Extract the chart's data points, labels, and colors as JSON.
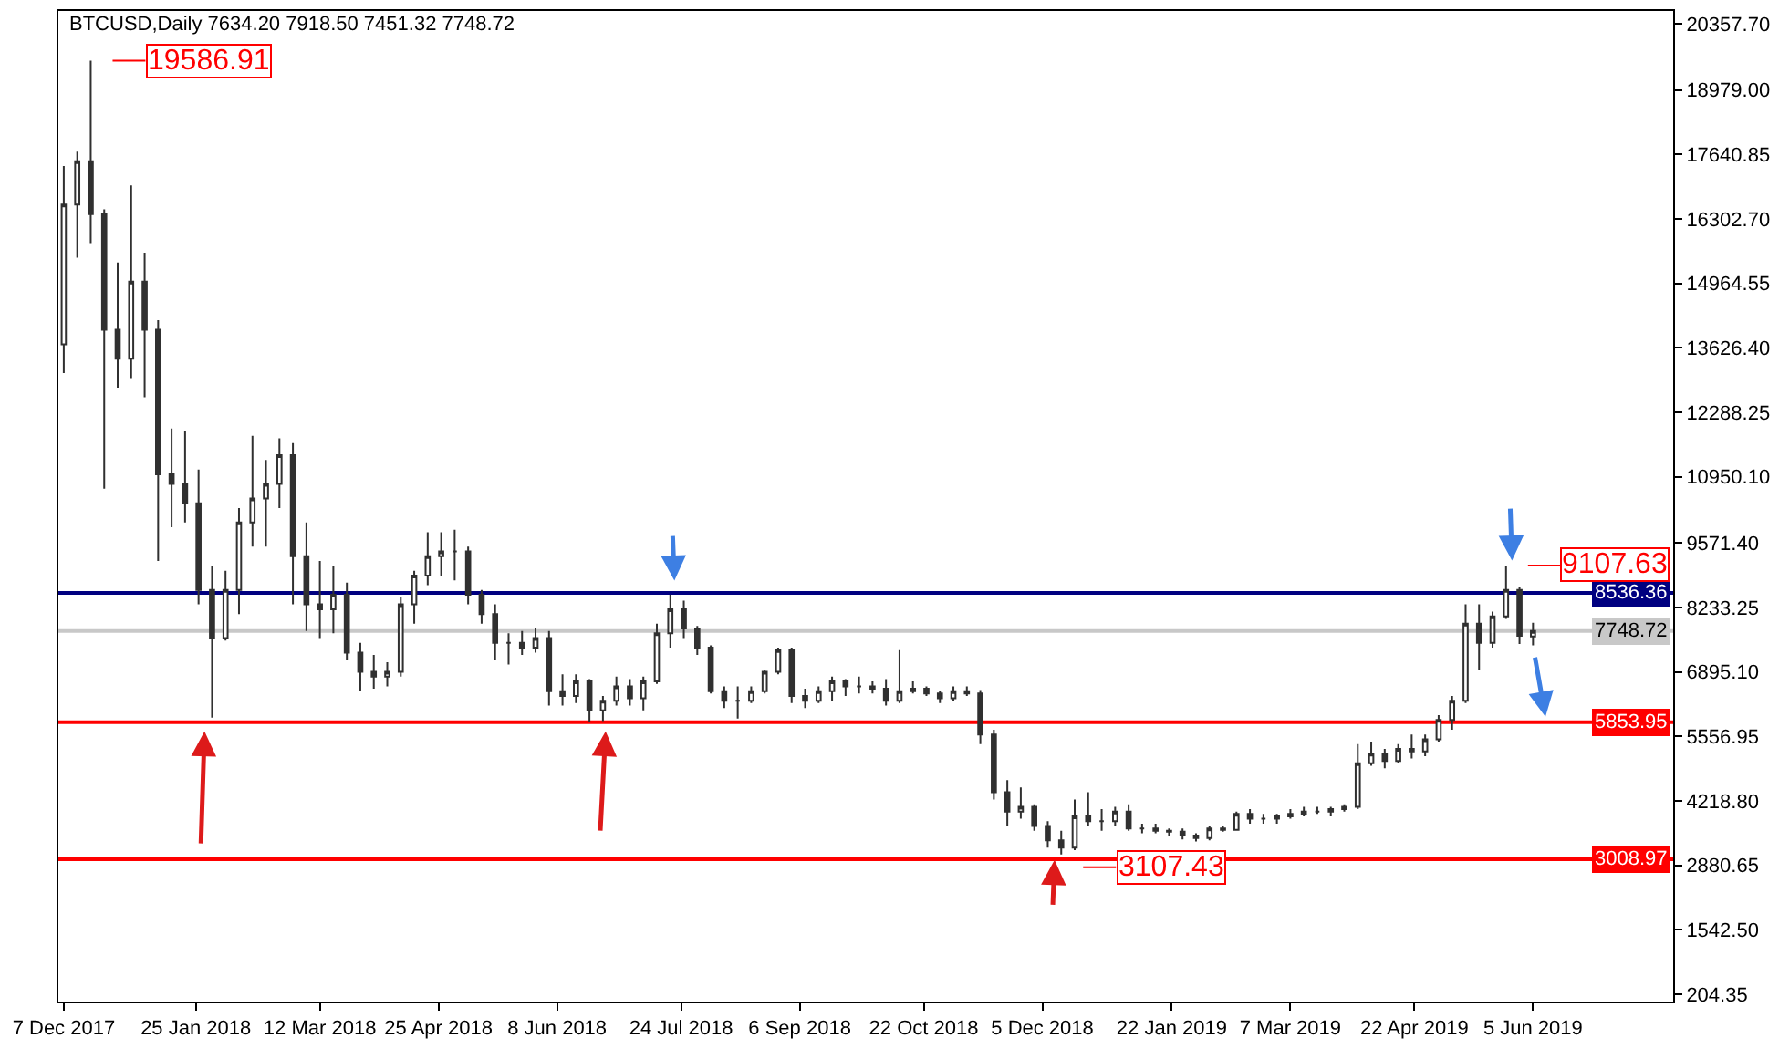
{
  "chart_data": {
    "type": "candlestick",
    "title": "BTCUSD,Daily 7634.20 7918.50 7451.32 7748.72",
    "color": "#303030",
    "x": [
      "2017-12-07",
      "2017-12-12",
      "2017-12-17",
      "2017-12-22",
      "2017-12-27",
      "2018-01-01",
      "2018-01-06",
      "2018-01-11",
      "2018-01-16",
      "2018-01-21",
      "2018-01-26",
      "2018-01-31",
      "2018-02-05",
      "2018-02-10",
      "2018-02-15",
      "2018-02-20",
      "2018-02-25",
      "2018-03-02",
      "2018-03-07",
      "2018-03-12",
      "2018-03-17",
      "2018-03-22",
      "2018-03-27",
      "2018-04-01",
      "2018-04-06",
      "2018-04-11",
      "2018-04-16",
      "2018-04-21",
      "2018-04-26",
      "2018-05-01",
      "2018-05-06",
      "2018-05-11",
      "2018-05-16",
      "2018-05-21",
      "2018-05-26",
      "2018-05-31",
      "2018-06-05",
      "2018-06-10",
      "2018-06-15",
      "2018-06-20",
      "2018-06-25",
      "2018-06-30",
      "2018-07-05",
      "2018-07-10",
      "2018-07-15",
      "2018-07-20",
      "2018-07-25",
      "2018-07-30",
      "2018-08-04",
      "2018-08-09",
      "2018-08-14",
      "2018-08-19",
      "2018-08-24",
      "2018-08-29",
      "2018-09-03",
      "2018-09-08",
      "2018-09-13",
      "2018-09-18",
      "2018-09-23",
      "2018-09-28",
      "2018-10-03",
      "2018-10-08",
      "2018-10-13",
      "2018-10-18",
      "2018-10-23",
      "2018-10-28",
      "2018-11-02",
      "2018-11-07",
      "2018-11-12",
      "2018-11-17",
      "2018-11-22",
      "2018-11-27",
      "2018-12-02",
      "2018-12-07",
      "2018-12-12",
      "2018-12-17",
      "2018-12-22",
      "2018-12-27",
      "2019-01-01",
      "2019-01-06",
      "2019-01-11",
      "2019-01-16",
      "2019-01-21",
      "2019-01-26",
      "2019-01-31",
      "2019-02-05",
      "2019-02-10",
      "2019-02-15",
      "2019-02-20",
      "2019-02-25",
      "2019-03-02",
      "2019-03-07",
      "2019-03-12",
      "2019-03-17",
      "2019-03-22",
      "2019-03-27",
      "2019-04-01",
      "2019-04-06",
      "2019-04-11",
      "2019-04-16",
      "2019-04-21",
      "2019-04-26",
      "2019-05-01",
      "2019-05-06",
      "2019-05-11",
      "2019-05-16",
      "2019-05-21",
      "2019-05-26",
      "2019-05-31",
      "2019-06-05"
    ],
    "ohlc": [
      [
        13700,
        17400,
        13100,
        16600
      ],
      [
        16600,
        17700,
        15500,
        17500
      ],
      [
        17500,
        19586.91,
        15800,
        16400
      ],
      [
        16400,
        16500,
        10700,
        14000
      ],
      [
        14000,
        15400,
        12800,
        13400
      ],
      [
        13400,
        17000,
        13000,
        15000
      ],
      [
        15000,
        15600,
        12600,
        14000
      ],
      [
        14000,
        14200,
        9200,
        11000
      ],
      [
        11000,
        11950,
        9900,
        10800
      ],
      [
        10800,
        11900,
        10000,
        10400
      ],
      [
        10400,
        11100,
        8300,
        8600
      ],
      [
        8600,
        9100,
        5950,
        7600
      ],
      [
        7600,
        9000,
        7550,
        8600
      ],
      [
        8600,
        10300,
        8100,
        10000
      ],
      [
        10000,
        11800,
        9500,
        10500
      ],
      [
        10500,
        11300,
        9500,
        10800
      ],
      [
        10800,
        11750,
        10300,
        11400
      ],
      [
        11400,
        11650,
        8300,
        9300
      ],
      [
        9300,
        10000,
        7750,
        8300
      ],
      [
        8300,
        9200,
        7600,
        8200
      ],
      [
        8200,
        9100,
        7700,
        8500
      ],
      [
        8500,
        8750,
        7150,
        7300
      ],
      [
        7300,
        7500,
        6500,
        6900
      ],
      [
        6900,
        7250,
        6550,
        6800
      ],
      [
        6800,
        7100,
        6600,
        6900
      ],
      [
        6900,
        8450,
        6800,
        8300
      ],
      [
        8300,
        9000,
        7900,
        8900
      ],
      [
        8900,
        9800,
        8700,
        9300
      ],
      [
        9300,
        9800,
        8900,
        9400
      ],
      [
        9400,
        9850,
        8800,
        9400
      ],
      [
        9400,
        9500,
        8300,
        8500
      ],
      [
        8500,
        8600,
        7900,
        8100
      ],
      [
        8100,
        8300,
        7150,
        7500
      ],
      [
        7500,
        7700,
        7050,
        7500
      ],
      [
        7500,
        7750,
        7250,
        7400
      ],
      [
        7400,
        7800,
        7300,
        7600
      ],
      [
        7600,
        7750,
        6200,
        6500
      ],
      [
        6500,
        6850,
        6200,
        6400
      ],
      [
        6400,
        6850,
        6250,
        6700
      ],
      [
        6700,
        6750,
        5870,
        6100
      ],
      [
        6100,
        6400,
        5880,
        6300
      ],
      [
        6300,
        6800,
        6200,
        6600
      ],
      [
        6600,
        6750,
        6200,
        6350
      ],
      [
        6350,
        6800,
        6100,
        6700
      ],
      [
        6700,
        7900,
        6650,
        7700
      ],
      [
        7700,
        8500,
        7400,
        8200
      ],
      [
        8200,
        8380,
        7600,
        7800
      ],
      [
        7800,
        7850,
        7250,
        7400
      ],
      [
        7400,
        7450,
        6450,
        6500
      ],
      [
        6500,
        6600,
        6150,
        6300
      ],
      [
        6300,
        6600,
        5930,
        6300
      ],
      [
        6300,
        6600,
        6250,
        6500
      ],
      [
        6500,
        6950,
        6450,
        6900
      ],
      [
        6900,
        7400,
        6850,
        7350
      ],
      [
        7350,
        7400,
        6250,
        6400
      ],
      [
        6400,
        6550,
        6150,
        6300
      ],
      [
        6300,
        6600,
        6250,
        6500
      ],
      [
        6500,
        6800,
        6300,
        6700
      ],
      [
        6700,
        6750,
        6400,
        6600
      ],
      [
        6600,
        6800,
        6450,
        6600
      ],
      [
        6600,
        6700,
        6450,
        6550
      ],
      [
        6550,
        6750,
        6200,
        6300
      ],
      [
        6300,
        7350,
        6250,
        6500
      ],
      [
        6500,
        6700,
        6450,
        6550
      ],
      [
        6550,
        6600,
        6400,
        6450
      ],
      [
        6450,
        6500,
        6250,
        6350
      ],
      [
        6350,
        6600,
        6300,
        6500
      ],
      [
        6500,
        6600,
        6400,
        6450
      ],
      [
        6450,
        6520,
        5400,
        5600
      ],
      [
        5600,
        5700,
        4250,
        4400
      ],
      [
        4400,
        4650,
        3700,
        4000
      ],
      [
        4000,
        4500,
        3850,
        4100
      ],
      [
        4100,
        4150,
        3600,
        3700
      ],
      [
        3700,
        3800,
        3250,
        3400
      ],
      [
        3400,
        3600,
        3107.43,
        3250
      ],
      [
        3250,
        4250,
        3200,
        3900
      ],
      [
        3900,
        4400,
        3700,
        3800
      ],
      [
        3800,
        4050,
        3600,
        3800
      ],
      [
        3800,
        4100,
        3700,
        4000
      ],
      [
        4000,
        4150,
        3600,
        3650
      ],
      [
        3650,
        3750,
        3550,
        3650
      ],
      [
        3650,
        3750,
        3550,
        3600
      ],
      [
        3600,
        3650,
        3500,
        3580
      ],
      [
        3580,
        3650,
        3420,
        3500
      ],
      [
        3500,
        3550,
        3380,
        3450
      ],
      [
        3450,
        3700,
        3400,
        3650
      ],
      [
        3650,
        3700,
        3580,
        3620
      ],
      [
        3620,
        4000,
        3600,
        3950
      ],
      [
        3950,
        4050,
        3750,
        3850
      ],
      [
        3850,
        3950,
        3750,
        3850
      ],
      [
        3850,
        3950,
        3750,
        3900
      ],
      [
        3900,
        4050,
        3850,
        3950
      ],
      [
        3950,
        4100,
        3900,
        4000
      ],
      [
        4000,
        4100,
        3950,
        4000
      ],
      [
        4000,
        4100,
        3900,
        4050
      ],
      [
        4050,
        4150,
        4000,
        4100
      ],
      [
        4100,
        5400,
        4050,
        5000
      ],
      [
        5000,
        5450,
        4950,
        5200
      ],
      [
        5200,
        5300,
        4900,
        5050
      ],
      [
        5050,
        5400,
        5000,
        5300
      ],
      [
        5300,
        5600,
        5100,
        5250
      ],
      [
        5250,
        5600,
        5150,
        5500
      ],
      [
        5500,
        6000,
        5450,
        5900
      ],
      [
        5900,
        6400,
        5700,
        6300
      ],
      [
        6300,
        8300,
        6250,
        7900
      ],
      [
        7900,
        8300,
        6950,
        7500
      ],
      [
        7500,
        8150,
        7400,
        8050
      ],
      [
        8050,
        9107.63,
        8000,
        8600
      ],
      [
        8600,
        8650,
        7480,
        7650
      ],
      [
        7634.2,
        7918.5,
        7451.32,
        7748.72
      ]
    ],
    "xlim": [
      "2017-12-05",
      "2019-07-27"
    ],
    "xticks": [
      {
        "value": "2017-12-07",
        "label": "7 Dec 2017"
      },
      {
        "value": "2018-01-25",
        "label": "25 Jan 2018"
      },
      {
        "value": "2018-03-12",
        "label": "12 Mar 2018"
      },
      {
        "value": "2018-04-25",
        "label": "25 Apr 2018"
      },
      {
        "value": "2018-06-08",
        "label": "8 Jun 2018"
      },
      {
        "value": "2018-07-24",
        "label": "24 Jul 2018"
      },
      {
        "value": "2018-09-06",
        "label": "6 Sep 2018"
      },
      {
        "value": "2018-10-22",
        "label": "22 Oct 2018"
      },
      {
        "value": "2018-12-05",
        "label": "5 Dec 2018"
      },
      {
        "value": "2019-01-22",
        "label": "22 Jan 2019"
      },
      {
        "value": "2019-03-07",
        "label": "7 Mar 2019"
      },
      {
        "value": "2019-04-22",
        "label": "22 Apr 2019"
      },
      {
        "value": "2019-06-05",
        "label": "5 Jun 2019"
      }
    ],
    "ylim": [
      55,
      20620
    ],
    "yticks": [
      {
        "value": 204.35,
        "label": "204.35"
      },
      {
        "value": 1542.5,
        "label": "1542.50"
      },
      {
        "value": 2880.65,
        "label": "2880.65"
      },
      {
        "value": 4218.8,
        "label": "4218.80"
      },
      {
        "value": 5556.95,
        "label": "5556.95"
      },
      {
        "value": 6895.1,
        "label": "6895.10"
      },
      {
        "value": 8233.25,
        "label": "8233.25"
      },
      {
        "value": 9571.4,
        "label": "9571.40"
      },
      {
        "value": 10950.1,
        "label": "10950.10"
      },
      {
        "value": 12288.25,
        "label": "12288.25"
      },
      {
        "value": 13626.4,
        "label": "13626.40"
      },
      {
        "value": 14964.55,
        "label": "14964.55"
      },
      {
        "value": 16302.7,
        "label": "16302.70"
      },
      {
        "value": 17640.85,
        "label": "17640.85"
      },
      {
        "value": 18979,
        "label": "18979.00"
      },
      {
        "value": 20357.7,
        "label": "20357.70"
      }
    ],
    "ref_lines": [
      {
        "axis": "y",
        "value": 8536.36,
        "label": "8536.36",
        "color": "#000080"
      },
      {
        "axis": "y",
        "value": 7748.72,
        "label": "7748.72",
        "color": "#c8c8c8"
      },
      {
        "axis": "y",
        "value": 5853.95,
        "label": "5853.95",
        "color": "#ff0000"
      },
      {
        "axis": "y",
        "value": 3008.97,
        "label": "3008.97",
        "color": "#ff0000"
      }
    ],
    "annotations": [
      {
        "text": "19586.91",
        "x": "2017-12-17",
        "y": 19586.91
      },
      {
        "text": "9107.63",
        "x": "2019-05-26",
        "y": 9107.63
      },
      {
        "text": "3107.43",
        "x": "2018-12-12",
        "y": 3107.43
      }
    ],
    "grid": false
  }
}
